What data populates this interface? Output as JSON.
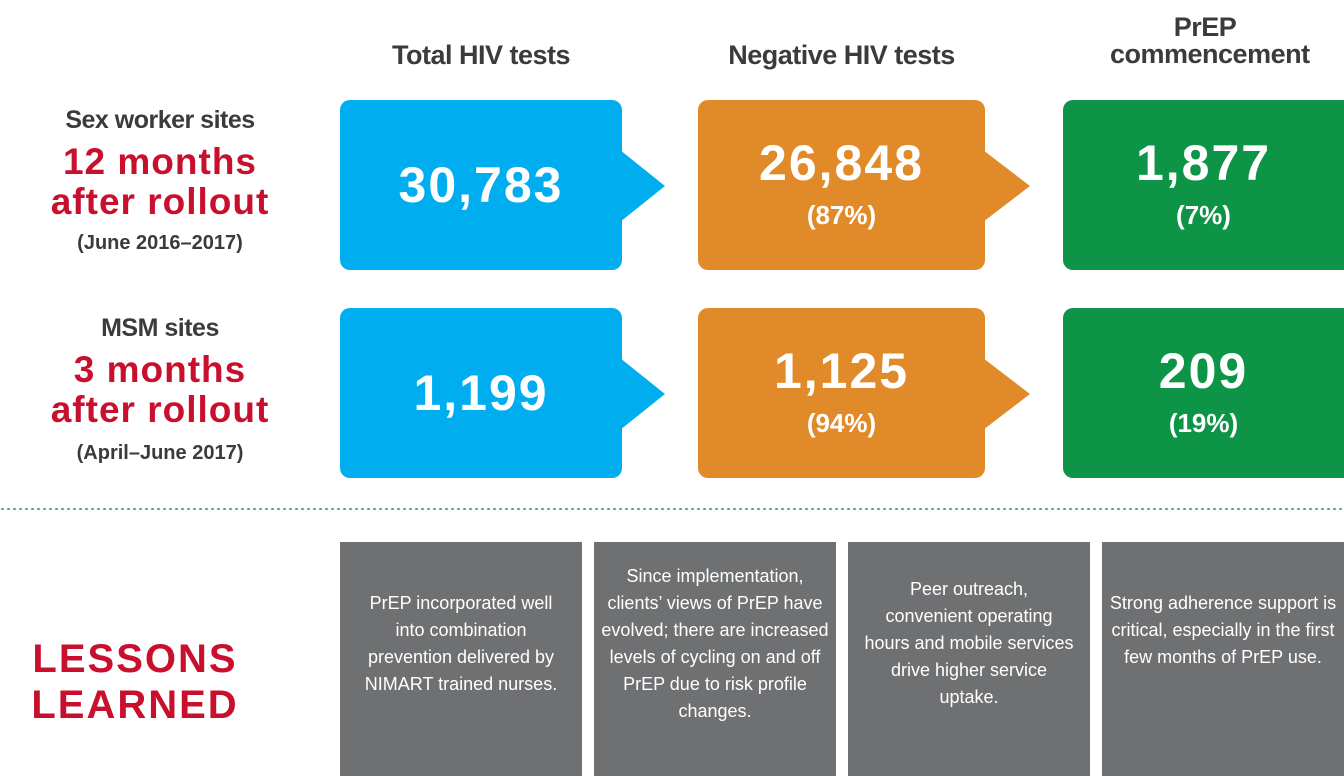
{
  "headers": [
    "Total HIV tests",
    "Negative HIV tests",
    "PrEP commencement"
  ],
  "rows": [
    {
      "label": "Sex worker sites",
      "highlight": [
        "12 months",
        "after rollout"
      ],
      "period": "(June 2016–2017)",
      "total": "30,783",
      "negative": "26,848",
      "negative_pct": "(87%)",
      "prep": "1,877",
      "prep_pct": "(7%)"
    },
    {
      "label": "MSM sites",
      "highlight": [
        "3 months",
        "after rollout"
      ],
      "period": "(April–June 2017)",
      "total": "1,199",
      "negative": "1,125",
      "negative_pct": "(94%)",
      "prep": "209",
      "prep_pct": "(19%)"
    }
  ],
  "lessons": {
    "title": [
      "LESSONS",
      "LEARNED"
    ],
    "items": [
      "PrEP incorporated well into combination prevention delivered by NIMART trained nurses.",
      "Since implementation, clients’ views of PrEP have evolved; there are increased levels of cycling on and off PrEP due to risk profile changes.",
      "Peer outreach, convenient operating hours and mobile services drive higher service uptake.",
      "Strong adherence support is critical, especially in the first few months of PrEP use."
    ]
  }
}
